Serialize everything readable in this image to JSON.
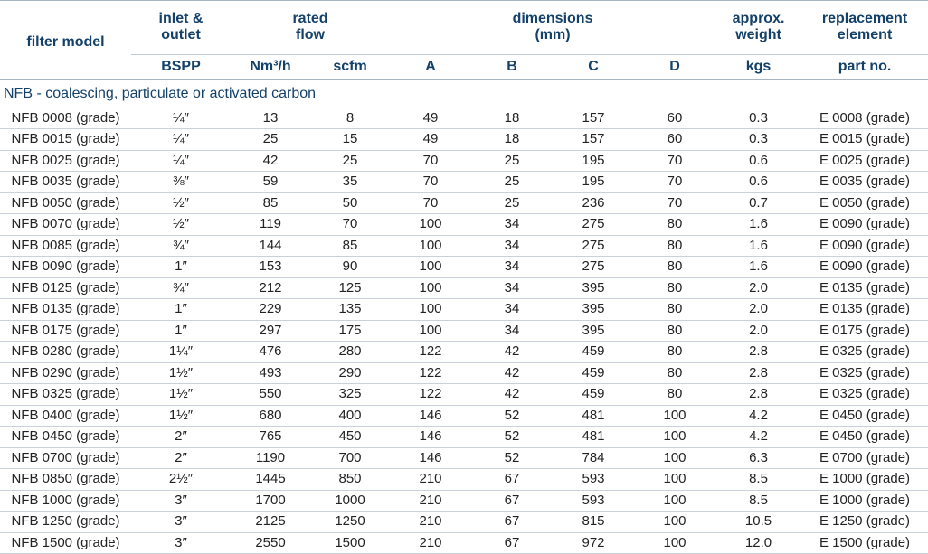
{
  "headers": {
    "filter_model": "filter model",
    "inlet": "inlet &",
    "inlet2": "outlet",
    "flow": "rated",
    "flow2": "flow",
    "dims": "dimensions",
    "dims2": "(mm)",
    "weight": "approx.",
    "weight2": "weight",
    "repl": "replacement",
    "repl2": "element"
  },
  "subheaders": {
    "bspp": "BSPP",
    "nm3h": "Nm³/h",
    "scfm": "scfm",
    "a": "A",
    "b": "B",
    "c": "C",
    "d": "D",
    "kgs": "kgs",
    "part": "part no."
  },
  "group_label": "NFB - coalescing, particulate or activated carbon",
  "rows": [
    [
      "NFB 0008 (grade)",
      "¼″",
      "13",
      "8",
      "49",
      "18",
      "157",
      "60",
      "0.3",
      "E 0008 (grade)"
    ],
    [
      "NFB 0015 (grade)",
      "¼″",
      "25",
      "15",
      "49",
      "18",
      "157",
      "60",
      "0.3",
      "E 0015 (grade)"
    ],
    [
      "NFB 0025 (grade)",
      "¼″",
      "42",
      "25",
      "70",
      "25",
      "195",
      "70",
      "0.6",
      "E 0025 (grade)"
    ],
    [
      "NFB 0035 (grade)",
      "⅜″",
      "59",
      "35",
      "70",
      "25",
      "195",
      "70",
      "0.6",
      "E 0035 (grade)"
    ],
    [
      "NFB 0050 (grade)",
      "½″",
      "85",
      "50",
      "70",
      "25",
      "236",
      "70",
      "0.7",
      "E 0050 (grade)"
    ],
    [
      "NFB 0070 (grade)",
      "½″",
      "119",
      "70",
      "100",
      "34",
      "275",
      "80",
      "1.6",
      "E 0090 (grade)"
    ],
    [
      "NFB 0085 (grade)",
      "¾″",
      "144",
      "85",
      "100",
      "34",
      "275",
      "80",
      "1.6",
      "E 0090 (grade)"
    ],
    [
      "NFB 0090 (grade)",
      "1″",
      "153",
      "90",
      "100",
      "34",
      "275",
      "80",
      "1.6",
      "E 0090 (grade)"
    ],
    [
      "NFB 0125 (grade)",
      "¾″",
      "212",
      "125",
      "100",
      "34",
      "395",
      "80",
      "2.0",
      "E 0135 (grade)"
    ],
    [
      "NFB 0135 (grade)",
      "1″",
      "229",
      "135",
      "100",
      "34",
      "395",
      "80",
      "2.0",
      "E 0135 (grade)"
    ],
    [
      "NFB 0175 (grade)",
      "1″",
      "297",
      "175",
      "100",
      "34",
      "395",
      "80",
      "2.0",
      "E 0175 (grade)"
    ],
    [
      "NFB 0280 (grade)",
      "1¼″",
      "476",
      "280",
      "122",
      "42",
      "459",
      "80",
      "2.8",
      "E 0325 (grade)"
    ],
    [
      "NFB 0290 (grade)",
      "1½″",
      "493",
      "290",
      "122",
      "42",
      "459",
      "80",
      "2.8",
      "E 0325 (grade)"
    ],
    [
      "NFB 0325 (grade)",
      "1½″",
      "550",
      "325",
      "122",
      "42",
      "459",
      "80",
      "2.8",
      "E 0325 (grade)"
    ],
    [
      "NFB 0400 (grade)",
      "1½″",
      "680",
      "400",
      "146",
      "52",
      "481",
      "100",
      "4.2",
      "E 0450 (grade)"
    ],
    [
      "NFB 0450 (grade)",
      "2″",
      "765",
      "450",
      "146",
      "52",
      "481",
      "100",
      "4.2",
      "E 0450 (grade)"
    ],
    [
      "NFB 0700 (grade)",
      "2″",
      "1190",
      "700",
      "146",
      "52",
      "784",
      "100",
      "6.3",
      "E 0700 (grade)"
    ],
    [
      "NFB 0850 (grade)",
      "2½″",
      "1445",
      "850",
      "210",
      "67",
      "593",
      "100",
      "8.5",
      "E 1000 (grade)"
    ],
    [
      "NFB 1000 (grade)",
      "3″",
      "1700",
      "1000",
      "210",
      "67",
      "593",
      "100",
      "8.5",
      "E 1000 (grade)"
    ],
    [
      "NFB 1250 (grade)",
      "3″",
      "2125",
      "1250",
      "210",
      "67",
      "815",
      "100",
      "10.5",
      "E 1250 (grade)"
    ],
    [
      "NFB 1500 (grade)",
      "3″",
      "2550",
      "1500",
      "210",
      "67",
      "972",
      "100",
      "12.0",
      "E 1500 (grade)"
    ]
  ]
}
